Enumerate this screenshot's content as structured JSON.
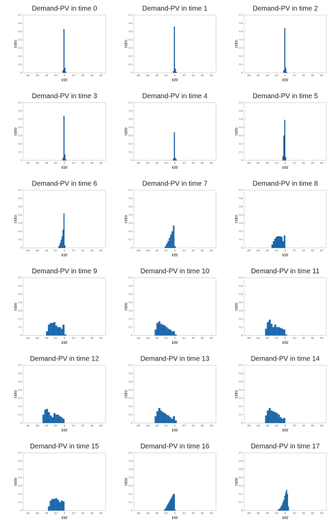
{
  "chart_data": [
    {
      "type": "histogram",
      "title": "Demand-PV in time 0",
      "xlabel": "kW",
      "ylabel": "ratio",
      "bins": [
        -4,
        -2,
        0,
        2,
        4
      ],
      "counts": [
        0.03,
        0.53,
        0.06,
        0.01
      ],
      "color": "#1f5f9e",
      "xlim": [
        -90,
        90
      ],
      "ylim": [
        0,
        0.7
      ],
      "xticks": [
        -80,
        -60,
        -40,
        -20,
        0,
        20,
        40,
        60,
        80
      ],
      "yticks": [
        0,
        0.1,
        0.2,
        0.3,
        0.4,
        0.5,
        0.6,
        0.7
      ]
    },
    {
      "type": "histogram",
      "title": "Demand-PV in time 1",
      "xlabel": "kW",
      "ylabel": "ratio",
      "bins": [
        -4,
        -2,
        0,
        2,
        4
      ],
      "counts": [
        0.02,
        0.56,
        0.05,
        0.01
      ],
      "color": "#1f5f9e",
      "xlim": [
        -90,
        90
      ],
      "ylim": [
        0,
        0.7
      ],
      "xticks": [
        -80,
        -60,
        -40,
        -20,
        0,
        20,
        40,
        60,
        80
      ],
      "yticks": [
        0,
        0.1,
        0.2,
        0.3,
        0.4,
        0.5,
        0.6,
        0.7
      ]
    },
    {
      "type": "histogram",
      "title": "Demand-PV in time 2",
      "xlabel": "kW",
      "ylabel": "ratio",
      "bins": [
        -4,
        -2,
        0,
        2,
        4
      ],
      "counts": [
        0.03,
        0.54,
        0.06,
        0.01
      ],
      "color": "#1f5f9e",
      "xlim": [
        -90,
        90
      ],
      "ylim": [
        0,
        0.7
      ],
      "xticks": [
        -80,
        -60,
        -40,
        -20,
        0,
        20,
        40,
        60,
        80
      ],
      "yticks": [
        0,
        0.1,
        0.2,
        0.3,
        0.4,
        0.5,
        0.6,
        0.7
      ]
    },
    {
      "type": "histogram",
      "title": "Demand-PV in time 3",
      "xlabel": "kW",
      "ylabel": "ratio",
      "bins": [
        -4,
        -2,
        0,
        2,
        4
      ],
      "counts": [
        0.03,
        0.54,
        0.07,
        0.01
      ],
      "color": "#1f5f9e",
      "xlim": [
        -90,
        90
      ],
      "ylim": [
        0,
        0.7
      ],
      "xticks": [
        -80,
        -60,
        -40,
        -20,
        0,
        20,
        40,
        60,
        80
      ],
      "yticks": [
        0,
        0.1,
        0.2,
        0.3,
        0.4,
        0.5,
        0.6,
        0.7
      ]
    },
    {
      "type": "histogram",
      "title": "Demand-PV in time 4",
      "xlabel": "kW",
      "ylabel": "ratio",
      "bins": [
        -4,
        -2,
        0,
        2,
        4
      ],
      "counts": [
        0.02,
        0.34,
        0.03,
        0.01
      ],
      "color": "#1f5f9e",
      "xlim": [
        -90,
        90
      ],
      "ylim": [
        0,
        0.7
      ],
      "xticks": [
        -80,
        -60,
        -40,
        -20,
        0,
        20,
        40,
        60,
        80
      ],
      "yticks": [
        0,
        0.1,
        0.2,
        0.3,
        0.4,
        0.5,
        0.6,
        0.7
      ]
    },
    {
      "type": "histogram",
      "title": "Demand-PV in time 5",
      "xlabel": "kW",
      "ylabel": "ratio",
      "bins": [
        -6,
        -4,
        -2,
        0,
        2
      ],
      "counts": [
        0.05,
        0.3,
        0.49,
        0.04
      ],
      "color": "#1f5f9e",
      "xlim": [
        -90,
        90
      ],
      "ylim": [
        0,
        0.7
      ],
      "xticks": [
        -80,
        -60,
        -40,
        -20,
        0,
        20,
        40,
        60,
        80
      ],
      "yticks": [
        0,
        0.1,
        0.2,
        0.3,
        0.4,
        0.5,
        0.6,
        0.7
      ]
    },
    {
      "type": "histogram",
      "title": "Demand-PV in time 6",
      "xlabel": "kW",
      "ylabel": "ratio",
      "bins": [
        -14,
        -12,
        -10,
        -8,
        -6,
        -4,
        -2,
        0,
        2
      ],
      "counts": [
        0.01,
        0.03,
        0.06,
        0.1,
        0.14,
        0.22,
        0.42,
        0.03
      ],
      "color": "#1f6db3",
      "xlim": [
        -90,
        90
      ],
      "ylim": [
        0,
        0.7
      ],
      "xticks": [
        -80,
        -60,
        -40,
        -20,
        0,
        20,
        40,
        60,
        80
      ],
      "yticks": [
        0,
        0.1,
        0.2,
        0.3,
        0.4,
        0.5,
        0.6,
        0.7
      ]
    },
    {
      "type": "histogram",
      "title": "Demand-PV in time 7",
      "xlabel": "kW",
      "ylabel": "ratio",
      "bins": [
        -22,
        -19,
        -16,
        -13,
        -10,
        -7,
        -4,
        -1,
        2
      ],
      "counts": [
        0.02,
        0.05,
        0.08,
        0.12,
        0.16,
        0.2,
        0.27,
        0.02
      ],
      "color": "#1f6db3",
      "xlim": [
        -90,
        90
      ],
      "ylim": [
        0,
        0.7
      ],
      "xticks": [
        -80,
        -60,
        -40,
        -20,
        0,
        20,
        40,
        60,
        80
      ],
      "yticks": [
        0,
        0.1,
        0.2,
        0.3,
        0.4,
        0.5,
        0.6,
        0.7
      ]
    },
    {
      "type": "histogram",
      "title": "Demand-PV in time 8",
      "xlabel": "kW",
      "ylabel": "ratio",
      "bins": [
        -30,
        -27,
        -24,
        -21,
        -18,
        -15,
        -12,
        -9,
        -6,
        -3,
        0
      ],
      "counts": [
        0.04,
        0.08,
        0.11,
        0.13,
        0.14,
        0.14,
        0.14,
        0.13,
        0.08,
        0.15
      ],
      "color": "#1f6db3",
      "xlim": [
        -90,
        90
      ],
      "ylim": [
        0,
        0.7
      ],
      "xticks": [
        -80,
        -60,
        -40,
        -20,
        0,
        20,
        40,
        60,
        80
      ],
      "yticks": [
        0,
        0.1,
        0.2,
        0.3,
        0.4,
        0.5,
        0.6,
        0.7
      ]
    },
    {
      "type": "histogram",
      "title": "Demand-PV in time 9",
      "xlabel": "kW",
      "ylabel": "ratio",
      "bins": [
        -40,
        -36,
        -32,
        -28,
        -24,
        -20,
        -16,
        -12,
        -8,
        -4,
        0,
        4
      ],
      "counts": [
        0.05,
        0.13,
        0.15,
        0.15,
        0.16,
        0.12,
        0.1,
        0.1,
        0.08,
        0.13,
        0.01
      ],
      "color": "#1f6db3",
      "xlim": [
        -90,
        90
      ],
      "ylim": [
        0,
        0.7
      ],
      "xticks": [
        -80,
        -60,
        -40,
        -20,
        0,
        20,
        40,
        60,
        80
      ],
      "yticks": [
        0,
        0.1,
        0.2,
        0.3,
        0.4,
        0.5,
        0.6,
        0.7
      ]
    },
    {
      "type": "histogram",
      "title": "Demand-PV in time 10",
      "xlabel": "kW",
      "ylabel": "ratio",
      "bins": [
        -44,
        -40,
        -36,
        -32,
        -28,
        -24,
        -20,
        -16,
        -12,
        -8,
        -4,
        0,
        4
      ],
      "counts": [
        0.07,
        0.15,
        0.17,
        0.14,
        0.13,
        0.12,
        0.1,
        0.08,
        0.07,
        0.05,
        0.05,
        0.01
      ],
      "color": "#1f6db3",
      "xlim": [
        -90,
        90
      ],
      "ylim": [
        0,
        0.7
      ],
      "xticks": [
        -80,
        -60,
        -40,
        -20,
        0,
        20,
        40,
        60,
        80
      ],
      "yticks": [
        0,
        0.1,
        0.2,
        0.3,
        0.4,
        0.5,
        0.6,
        0.7
      ]
    },
    {
      "type": "histogram",
      "title": "Demand-PV in time 11",
      "xlabel": "kW",
      "ylabel": "ratio",
      "bins": [
        -44,
        -40,
        -36,
        -32,
        -28,
        -24,
        -20,
        -16,
        -12,
        -8,
        -4,
        0,
        4
      ],
      "counts": [
        0.08,
        0.16,
        0.19,
        0.14,
        0.1,
        0.13,
        0.1,
        0.1,
        0.09,
        0.08,
        0.07,
        0.01
      ],
      "color": "#1f6db3",
      "xlim": [
        -90,
        90
      ],
      "ylim": [
        0,
        0.7
      ],
      "xticks": [
        -80,
        -60,
        -40,
        -20,
        0,
        20,
        40,
        60,
        80
      ],
      "yticks": [
        0,
        0.1,
        0.2,
        0.3,
        0.4,
        0.5,
        0.6,
        0.7
      ]
    },
    {
      "type": "histogram",
      "title": "Demand-PV in time 12",
      "xlabel": "kW",
      "ylabel": "ratio",
      "bins": [
        -48,
        -44,
        -40,
        -36,
        -32,
        -28,
        -24,
        -20,
        -16,
        -12,
        -8,
        -4,
        0
      ],
      "counts": [
        0.1,
        0.16,
        0.17,
        0.13,
        0.09,
        0.07,
        0.12,
        0.1,
        0.1,
        0.08,
        0.07,
        0.05
      ],
      "color": "#1f6db3",
      "xlim": [
        -90,
        90
      ],
      "ylim": [
        0,
        0.7
      ],
      "xticks": [
        -80,
        -60,
        -40,
        -20,
        0,
        20,
        40,
        60,
        80
      ],
      "yticks": [
        0,
        0.1,
        0.2,
        0.3,
        0.4,
        0.5,
        0.6,
        0.7
      ]
    },
    {
      "type": "histogram",
      "title": "Demand-PV in time 13",
      "xlabel": "kW",
      "ylabel": "ratio",
      "bins": [
        -44,
        -40,
        -36,
        -32,
        -28,
        -24,
        -20,
        -16,
        -12,
        -8,
        -4,
        0,
        4
      ],
      "counts": [
        0.08,
        0.14,
        0.18,
        0.15,
        0.13,
        0.12,
        0.1,
        0.09,
        0.07,
        0.05,
        0.08,
        0.03
      ],
      "color": "#1f6db3",
      "xlim": [
        -90,
        90
      ],
      "ylim": [
        0,
        0.7
      ],
      "xticks": [
        -80,
        -60,
        -40,
        -20,
        0,
        20,
        40,
        60,
        80
      ],
      "yticks": [
        0,
        0.1,
        0.2,
        0.3,
        0.4,
        0.5,
        0.6,
        0.7
      ]
    },
    {
      "type": "histogram",
      "title": "Demand-PV in time 14",
      "xlabel": "kW",
      "ylabel": "ratio",
      "bins": [
        -44,
        -40,
        -36,
        -32,
        -28,
        -24,
        -20,
        -16,
        -12,
        -8,
        -4,
        0
      ],
      "counts": [
        0.09,
        0.15,
        0.18,
        0.15,
        0.14,
        0.13,
        0.12,
        0.1,
        0.07,
        0.05,
        0.06
      ],
      "color": "#1f6db3",
      "xlim": [
        -90,
        90
      ],
      "ylim": [
        0,
        0.7
      ],
      "xticks": [
        -80,
        -60,
        -40,
        -20,
        0,
        20,
        40,
        60,
        80
      ],
      "yticks": [
        0,
        0.1,
        0.2,
        0.3,
        0.4,
        0.5,
        0.6,
        0.7
      ]
    },
    {
      "type": "histogram",
      "title": "Demand-PV in time 15",
      "xlabel": "kW",
      "ylabel": "ratio",
      "bins": [
        -36,
        -32,
        -28,
        -24,
        -20,
        -16,
        -12,
        -8,
        -4,
        0
      ],
      "counts": [
        0.05,
        0.12,
        0.14,
        0.14,
        0.15,
        0.13,
        0.1,
        0.12,
        0.11
      ],
      "color": "#1f6db3",
      "xlim": [
        -90,
        90
      ],
      "ylim": [
        0,
        0.7
      ],
      "xticks": [
        -80,
        -60,
        -40,
        -20,
        0,
        20,
        40,
        60,
        80
      ],
      "yticks": [
        0,
        0.1,
        0.2,
        0.3,
        0.4,
        0.5,
        0.6,
        0.7
      ]
    },
    {
      "type": "histogram",
      "title": "Demand-PV in time 16",
      "xlabel": "kW",
      "ylabel": "ratio",
      "bins": [
        -24,
        -22,
        -20,
        -18,
        -16,
        -14,
        -12,
        -10,
        -8,
        -6,
        -4,
        -2,
        0,
        2
      ],
      "counts": [
        0.01,
        0.02,
        0.04,
        0.06,
        0.08,
        0.1,
        0.12,
        0.14,
        0.16,
        0.18,
        0.2,
        0.2,
        0.01
      ],
      "color": "#1f6db3",
      "xlim": [
        -90,
        90
      ],
      "ylim": [
        0,
        0.7
      ],
      "xticks": [
        -80,
        -60,
        -40,
        -20,
        0,
        20,
        40,
        60,
        80
      ],
      "yticks": [
        0,
        0.1,
        0.2,
        0.3,
        0.4,
        0.5,
        0.6,
        0.7
      ]
    },
    {
      "type": "histogram",
      "title": "Demand-PV in time 17",
      "xlabel": "kW",
      "ylabel": "ratio",
      "bins": [
        -16,
        -14,
        -12,
        -10,
        -8,
        -6,
        -4,
        -2,
        0,
        2,
        4,
        6,
        8
      ],
      "counts": [
        0.01,
        0.02,
        0.03,
        0.05,
        0.07,
        0.1,
        0.13,
        0.18,
        0.22,
        0.25,
        0.2,
        0.05
      ],
      "color": "#1f6db3",
      "xlim": [
        -90,
        90
      ],
      "ylim": [
        0,
        0.7
      ],
      "xticks": [
        -80,
        -60,
        -40,
        -20,
        0,
        20,
        40,
        60,
        80
      ],
      "yticks": [
        0,
        0.1,
        0.2,
        0.3,
        0.4,
        0.5,
        0.6,
        0.7
      ]
    }
  ]
}
